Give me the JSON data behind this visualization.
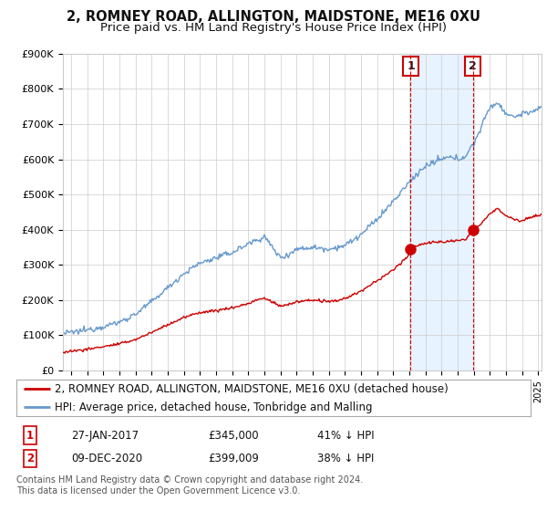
{
  "title": "2, ROMNEY ROAD, ALLINGTON, MAIDSTONE, ME16 0XU",
  "subtitle": "Price paid vs. HM Land Registry's House Price Index (HPI)",
  "ylabel_ticks": [
    "£0",
    "£100K",
    "£200K",
    "£300K",
    "£400K",
    "£500K",
    "£600K",
    "£700K",
    "£800K",
    "£900K"
  ],
  "ytick_values": [
    0,
    100000,
    200000,
    300000,
    400000,
    500000,
    600000,
    700000,
    800000,
    900000
  ],
  "ylim": [
    0,
    900000
  ],
  "xlim_start": 1995.5,
  "xlim_end": 2025.2,
  "sale1_x": 2017.08,
  "sale1_y": 345000,
  "sale2_x": 2020.93,
  "sale2_y": 399009,
  "legend_house": "2, ROMNEY ROAD, ALLINGTON, MAIDSTONE, ME16 0XU (detached house)",
  "legend_hpi": "HPI: Average price, detached house, Tonbridge and Malling",
  "footnote": "Contains HM Land Registry data © Crown copyright and database right 2024.\nThis data is licensed under the Open Government Licence v3.0.",
  "line_color_house": "#cc0000",
  "line_color_hpi": "#6699cc",
  "shade_color": "#ddeeff",
  "background_color": "#ffffff",
  "grid_color": "#cccccc",
  "vline_color": "#cc0000",
  "title_fontsize": 10.5,
  "subtitle_fontsize": 9.5,
  "tick_fontsize": 8,
  "legend_fontsize": 8.5,
  "footnote_fontsize": 7,
  "hpi_anchors": [
    [
      1995.5,
      105000
    ],
    [
      1996.0,
      108000
    ],
    [
      1997.0,
      115000
    ],
    [
      1998.0,
      125000
    ],
    [
      1999.0,
      137000
    ],
    [
      2000.0,
      160000
    ],
    [
      2001.0,
      195000
    ],
    [
      2002.0,
      235000
    ],
    [
      2003.0,
      275000
    ],
    [
      2004.0,
      305000
    ],
    [
      2005.0,
      320000
    ],
    [
      2006.0,
      335000
    ],
    [
      2007.0,
      360000
    ],
    [
      2008.0,
      380000
    ],
    [
      2008.5,
      350000
    ],
    [
      2009.0,
      320000
    ],
    [
      2009.5,
      330000
    ],
    [
      2010.0,
      345000
    ],
    [
      2011.0,
      350000
    ],
    [
      2012.0,
      345000
    ],
    [
      2013.0,
      355000
    ],
    [
      2014.0,
      385000
    ],
    [
      2015.0,
      430000
    ],
    [
      2016.0,
      480000
    ],
    [
      2017.0,
      535000
    ],
    [
      2017.5,
      560000
    ],
    [
      2018.0,
      580000
    ],
    [
      2018.5,
      590000
    ],
    [
      2019.0,
      600000
    ],
    [
      2019.5,
      605000
    ],
    [
      2020.0,
      600000
    ],
    [
      2020.5,
      610000
    ],
    [
      2021.0,
      645000
    ],
    [
      2021.5,
      695000
    ],
    [
      2022.0,
      750000
    ],
    [
      2022.5,
      760000
    ],
    [
      2023.0,
      730000
    ],
    [
      2023.5,
      720000
    ],
    [
      2024.0,
      730000
    ],
    [
      2024.5,
      735000
    ],
    [
      2025.0,
      740000
    ],
    [
      2025.2,
      745000
    ]
  ],
  "house_anchors": [
    [
      1995.5,
      52000
    ],
    [
      1996.0,
      55000
    ],
    [
      1997.0,
      60000
    ],
    [
      1998.0,
      68000
    ],
    [
      1999.0,
      75000
    ],
    [
      2000.0,
      88000
    ],
    [
      2001.0,
      108000
    ],
    [
      2002.0,
      130000
    ],
    [
      2003.0,
      150000
    ],
    [
      2004.0,
      165000
    ],
    [
      2005.0,
      170000
    ],
    [
      2006.0,
      178000
    ],
    [
      2007.0,
      190000
    ],
    [
      2007.5,
      200000
    ],
    [
      2008.0,
      205000
    ],
    [
      2008.5,
      195000
    ],
    [
      2009.0,
      182000
    ],
    [
      2009.5,
      188000
    ],
    [
      2010.0,
      195000
    ],
    [
      2011.0,
      200000
    ],
    [
      2012.0,
      195000
    ],
    [
      2012.5,
      198000
    ],
    [
      2013.0,
      205000
    ],
    [
      2014.0,
      225000
    ],
    [
      2015.0,
      255000
    ],
    [
      2016.0,
      285000
    ],
    [
      2017.0,
      330000
    ],
    [
      2017.08,
      345000
    ],
    [
      2017.5,
      355000
    ],
    [
      2018.0,
      362000
    ],
    [
      2019.0,
      365000
    ],
    [
      2019.5,
      368000
    ],
    [
      2020.0,
      368000
    ],
    [
      2020.5,
      372000
    ],
    [
      2020.93,
      399009
    ],
    [
      2021.0,
      402000
    ],
    [
      2021.5,
      420000
    ],
    [
      2022.0,
      445000
    ],
    [
      2022.5,
      460000
    ],
    [
      2023.0,
      440000
    ],
    [
      2023.5,
      430000
    ],
    [
      2024.0,
      425000
    ],
    [
      2024.5,
      435000
    ],
    [
      2025.0,
      440000
    ],
    [
      2025.2,
      442000
    ]
  ]
}
